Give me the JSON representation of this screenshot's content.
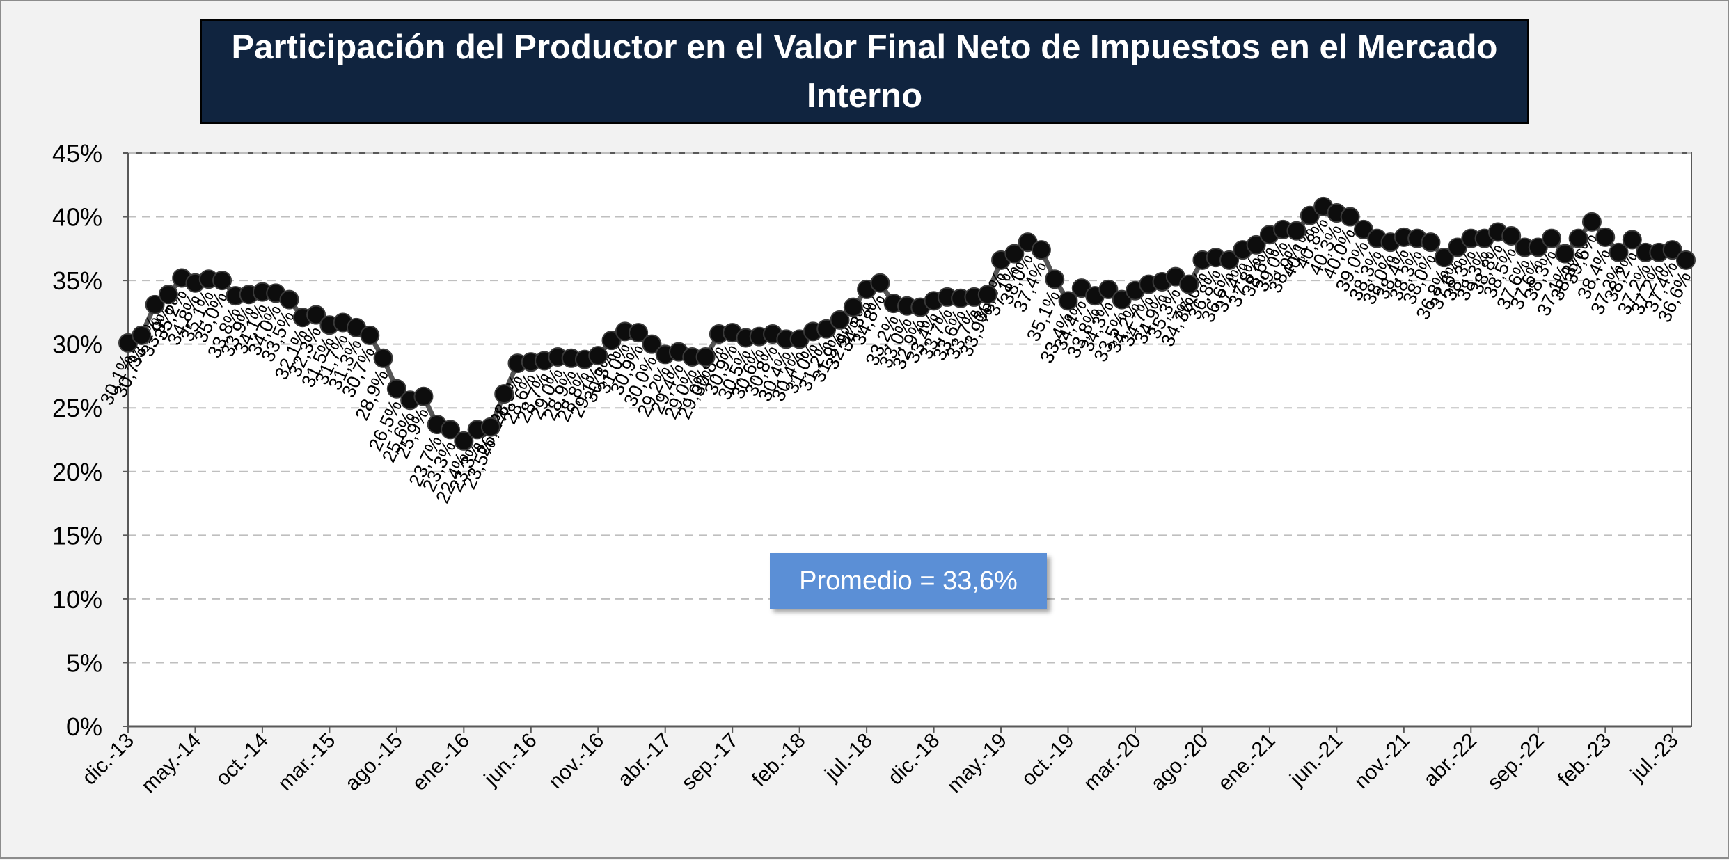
{
  "title": "Participación del Productor en el Valor Final Neto de Impuestos en el Mercado Interno",
  "annotation": "Promedio = 33,6%",
  "colors": {
    "title_bg": "#10243f",
    "title_text": "#ffffff",
    "annotation_bg": "#5b8fd6",
    "line": "#555555",
    "marker": "#0d0d0d",
    "gridline": "#bfbfbf"
  },
  "chart_data": {
    "type": "line",
    "title": "Participación del Productor en el Valor Final Neto de Impuestos en el Mercado Interno",
    "xlabel": "",
    "ylabel": "",
    "ylim": [
      0,
      0.45
    ],
    "y_ticks": [
      "0%",
      "5%",
      "10%",
      "15%",
      "20%",
      "25%",
      "30%",
      "35%",
      "40%",
      "45%"
    ],
    "x_tick_labels": [
      "dic.-13",
      "may.-14",
      "oct.-14",
      "mar.-15",
      "ago.-15",
      "ene.-16",
      "jun.-16",
      "nov.-16",
      "abr.-17",
      "sep.-17",
      "feb.-18",
      "jul.-18",
      "dic.-18",
      "may.-19",
      "oct.-19",
      "mar.-20",
      "ago.-20",
      "ene.-21",
      "jun.-21",
      "nov.-21",
      "abr.-22",
      "sep.-22",
      "feb.-23",
      "jul.-23"
    ],
    "grid": true,
    "legend": "none",
    "series": [
      {
        "values": [
          30.1,
          30.7,
          33.1,
          33.9,
          35.2,
          34.8,
          35.1,
          35.0,
          33.8,
          33.9,
          34.1,
          34.0,
          33.5,
          32.1,
          32.3,
          31.5,
          31.7,
          31.3,
          30.7,
          28.9,
          26.5,
          25.6,
          25.9,
          23.7,
          23.3,
          22.4,
          23.3,
          23.5,
          26.1,
          28.5,
          28.6,
          28.7,
          29.0,
          28.9,
          28.8,
          29.1,
          30.3,
          31.0,
          30.9,
          30.0,
          29.2,
          29.4,
          29.0,
          29.0,
          30.8,
          30.9,
          30.5,
          30.6,
          30.8,
          30.4,
          30.4,
          31.0,
          31.2,
          31.9,
          32.9,
          34.3,
          34.8,
          33.2,
          33.0,
          32.9,
          33.4,
          33.7,
          33.6,
          33.7,
          33.9,
          36.6,
          37.1,
          38.0,
          37.4,
          35.1,
          33.4,
          34.4,
          33.8,
          34.3,
          33.5,
          34.2,
          34.7,
          34.9,
          35.3,
          34.7,
          36.6,
          36.8,
          36.6,
          37.4,
          37.8,
          38.6,
          39.0,
          38.9,
          40.1,
          40.8,
          40.3,
          40.0,
          39.0,
          38.3,
          38.0,
          38.4,
          38.3,
          38.0,
          36.8,
          37.6,
          38.3,
          38.3,
          38.8,
          38.5,
          37.6,
          37.6,
          38.3,
          37.1,
          38.3,
          39.6,
          38.4,
          37.2,
          38.2,
          37.2,
          37.2,
          37.4,
          36.6
        ],
        "labels": [
          "30,1%",
          "30,7%",
          "33,1%",
          "33,9%",
          "35,2%",
          "34,8%",
          "35,1%",
          "35,0%",
          "33,8%",
          "33,9%",
          "34,1%",
          "34,0%",
          "33,5%",
          "32,1%",
          "32,3%",
          "31,5%",
          "31,7%",
          "31,3%",
          "30,7%",
          "28,9%",
          "26,5%",
          "25,6%",
          "25,9%",
          "23,7%",
          "23,3%",
          "22,4%",
          "23,3%",
          "23,5%",
          "26,1%",
          "28,5%",
          "28,6%",
          "28,7%",
          "29,0%",
          "28,9%",
          "28,8%",
          "29,1%",
          "30,3%",
          "31,0%",
          "30,9%",
          "30,0%",
          "29,2%",
          "29,4%",
          "29,0%",
          "29,0%",
          "30,8%",
          "30,9%",
          "30,5%",
          "30,6%",
          "30,8%",
          "30,4%",
          "30,4%",
          "31,0%",
          "31,2%",
          "31,9%",
          "32,9%",
          "34,3%",
          "34,8%",
          "33,2%",
          "33,0%",
          "32,9%",
          "33,4%",
          "33,7%",
          "33,6%",
          "33,7%",
          "33,9%",
          "36,6%",
          "37,1%",
          "38,0%",
          "37,4%",
          "35,1%",
          "33,4%",
          "34,4%",
          "33,8%",
          "34,3%",
          "33,5%",
          "34,2%",
          "34,7%",
          "34,9%",
          "35,3%",
          "34,7%",
          "36,6%",
          "36,8%",
          "36,6%",
          "37,4%",
          "37,8%",
          "38,6%",
          "39,0%",
          "38,9%",
          "40,1%",
          "40,8%",
          "40,3%",
          "40,0%",
          "39,0%",
          "38,3%",
          "38,0%",
          "38,4%",
          "38,3%",
          "38,0%",
          "36,8%",
          "37,6%",
          "38,3%",
          "38,3%",
          "38,8%",
          "38,5%",
          "37,6%",
          "37,6%",
          "38,3%",
          "37,1%",
          "38,3%",
          "39,6%",
          "38,4%",
          "37,2%",
          "38,2%",
          "37,2%",
          "37,2%",
          "37,4%",
          "36,6%"
        ]
      }
    ]
  }
}
